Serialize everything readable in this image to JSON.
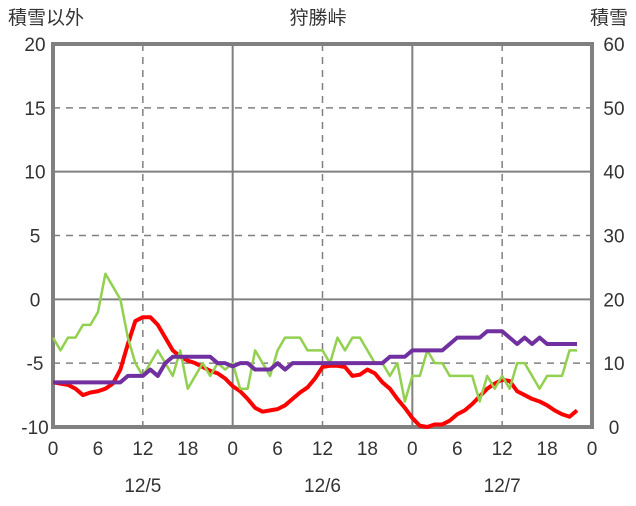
{
  "chart_data": {
    "type": "line",
    "title": "狩勝峠",
    "ylabel_left": "積雪以外",
    "ylabel_right": "積雪",
    "ylim_left": [
      -10,
      20
    ],
    "ylim_right": [
      0,
      60
    ],
    "yticks_left": [
      "20",
      "15",
      "10",
      "5",
      "0",
      "-5",
      "-10"
    ],
    "yticks_right": [
      "60",
      "50",
      "40",
      "30",
      "20",
      "10",
      "0"
    ],
    "xticks": [
      "0",
      "6",
      "12",
      "18",
      "0",
      "6",
      "12",
      "18",
      "0",
      "6",
      "12",
      "18",
      "0"
    ],
    "date_labels": [
      "12/5",
      "12/6",
      "12/7"
    ],
    "grid": true,
    "x_hours": "0-70",
    "series": [
      {
        "name": "red",
        "axis": "left",
        "color": "#ff0000",
        "values": [
          -6.5,
          -6.6,
          -6.7,
          -7.0,
          -7.5,
          -7.3,
          -7.2,
          -7.0,
          -6.6,
          -5.5,
          -3.5,
          -1.7,
          -1.4,
          -1.4,
          -2.0,
          -3.0,
          -4.0,
          -4.5,
          -4.8,
          -5.0,
          -5.3,
          -5.6,
          -5.8,
          -6.2,
          -6.8,
          -7.2,
          -7.8,
          -8.5,
          -8.8,
          -8.7,
          -8.6,
          -8.3,
          -7.8,
          -7.3,
          -6.9,
          -6.2,
          -5.3,
          -5.2,
          -5.2,
          -5.3,
          -6.0,
          -5.9,
          -5.5,
          -5.8,
          -6.5,
          -7.0,
          -7.8,
          -8.5,
          -9.3,
          -9.9,
          -10.0,
          -9.8,
          -9.8,
          -9.5,
          -9.0,
          -8.7,
          -8.2,
          -7.6,
          -7.0,
          -6.6,
          -6.3,
          -6.4,
          -7.2,
          -7.5,
          -7.8,
          -8.0,
          -8.3,
          -8.7,
          -9.0,
          -9.2,
          -8.7
        ]
      },
      {
        "name": "green",
        "axis": "left",
        "color": "#92d050",
        "values": [
          -3,
          -4,
          -3,
          -3,
          -2,
          -2,
          -1,
          2,
          1,
          0,
          -3,
          -5,
          -6,
          -5,
          -4,
          -5,
          -6,
          -4,
          -7,
          -6,
          -5,
          -6,
          -5,
          -5.5,
          -5,
          -7,
          -7,
          -4,
          -5,
          -6,
          -4,
          -3,
          -3,
          -3,
          -4,
          -4,
          -4,
          -5,
          -3,
          -4,
          -3,
          -3,
          -4,
          -5,
          -5,
          -6,
          -5,
          -8,
          -6,
          -6,
          -4,
          -5,
          -5,
          -6,
          -6,
          -6,
          -6,
          -8,
          -6,
          -7,
          -6,
          -7,
          -5,
          -5,
          -6,
          -7,
          -6,
          -6,
          -6,
          -4,
          -4
        ]
      },
      {
        "name": "purple",
        "axis": "right",
        "color": "#7030a0",
        "values": [
          7,
          7,
          7,
          7,
          7,
          7,
          7,
          7,
          7,
          7,
          8,
          8,
          8,
          9,
          8,
          10,
          11,
          11,
          11,
          11,
          11,
          11,
          10,
          10,
          9.5,
          10,
          10,
          9,
          9,
          9,
          10,
          9,
          10,
          10,
          10,
          10,
          10,
          10,
          10,
          10,
          10,
          10,
          10,
          10,
          10,
          11,
          11,
          11,
          12,
          12,
          12,
          12,
          12,
          13,
          14,
          14,
          14,
          14,
          15,
          15,
          15,
          14,
          13,
          14,
          13,
          14,
          13,
          13,
          13,
          13,
          13
        ]
      }
    ]
  }
}
